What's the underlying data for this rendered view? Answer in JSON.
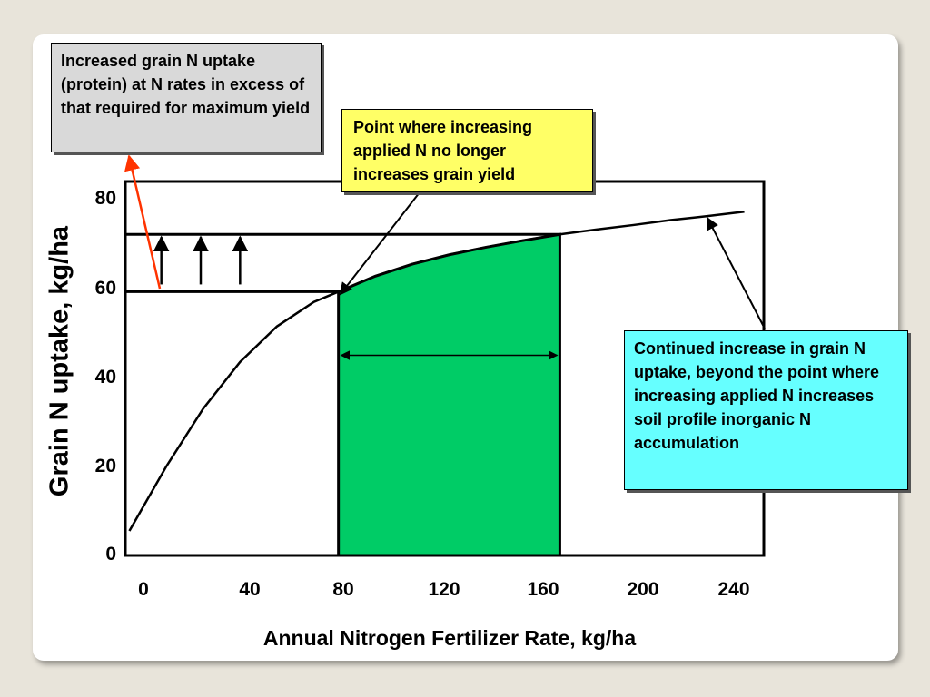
{
  "chart_data": {
    "type": "line",
    "xlabel": "Annual Nitrogen Fertilizer Rate, kg/ha",
    "ylabel": "Grain N uptake, kg/ha",
    "xlim": [
      -5,
      245
    ],
    "ylim": [
      0,
      84
    ],
    "x_ticks": [
      "0",
      "40",
      "80",
      "120",
      "160",
      "200",
      "240"
    ],
    "y_ticks": [
      "0",
      "20",
      "40",
      "60",
      "80"
    ],
    "series": [
      {
        "x": [
          -5,
          10,
          25,
          40,
          55,
          70,
          80,
          95,
          110,
          125,
          140,
          155,
          170,
          185,
          200,
          215,
          230,
          245
        ],
        "y": [
          5.5,
          20,
          33,
          43.5,
          51.5,
          57,
          59.3,
          62.8,
          65.5,
          67.6,
          69.3,
          70.8,
          72.2,
          73.3,
          74.3,
          75.4,
          76.3,
          77.3
        ]
      }
    ],
    "shaded_region": {
      "x_start": 80,
      "x_end": 170,
      "color": "#00cc66"
    },
    "horizontal_lines": [
      59.3,
      72.2
    ],
    "grid": false
  },
  "annotations": {
    "protein_box": "Increased grain N uptake (protein) at N rates in excess of that required for maximum yield",
    "max_yield_box": "Point where increasing applied N no longer increases grain yield",
    "accumulation_box": "Continued increase in grain N uptake, beyond the point where increasing applied N increases soil profile inorganic N accumulation"
  },
  "colors": {
    "background": "#e8e4da",
    "shaded_region": "#00cc66",
    "protein_box": "#d9d9d9",
    "max_yield_box": "#ffff66",
    "accumulation_box": "#66ffff",
    "red_arrow": "#ff3300"
  }
}
